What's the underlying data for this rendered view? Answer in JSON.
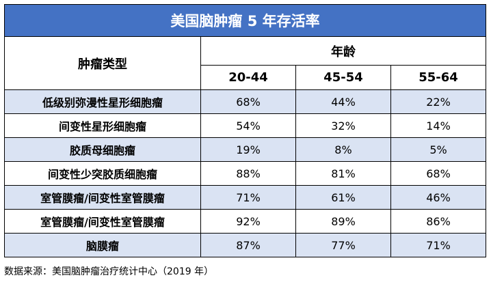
{
  "title": "美国脑肿瘤 5 年存活率",
  "header": {
    "type_label": "肿瘤类型",
    "age_label": "年龄",
    "age_groups": [
      "20-44",
      "45-54",
      "55-64"
    ]
  },
  "rows": [
    {
      "name": "低级别弥漫性星形细胞瘤",
      "values": [
        "68%",
        "44%",
        "22%"
      ]
    },
    {
      "name": "间变性星形细胞瘤",
      "values": [
        "54%",
        "32%",
        "14%"
      ]
    },
    {
      "name": "胶质母细胞瘤",
      "values": [
        "19%",
        "8%",
        "5%"
      ]
    },
    {
      "name": "间变性少突胶质细胞瘤",
      "values": [
        "88%",
        "81%",
        "68%"
      ]
    },
    {
      "name": "室管膜瘤/间变性室管膜瘤",
      "values": [
        "71%",
        "61%",
        "46%"
      ]
    },
    {
      "name": "室管膜瘤/间变性室管膜瘤",
      "values": [
        "92%",
        "89%",
        "86%"
      ]
    },
    {
      "name": "脑膜瘤",
      "values": [
        "87%",
        "77%",
        "71%"
      ]
    }
  ],
  "source": "数据来源：美国脑肿瘤治疗统计中心（2019 年）"
}
